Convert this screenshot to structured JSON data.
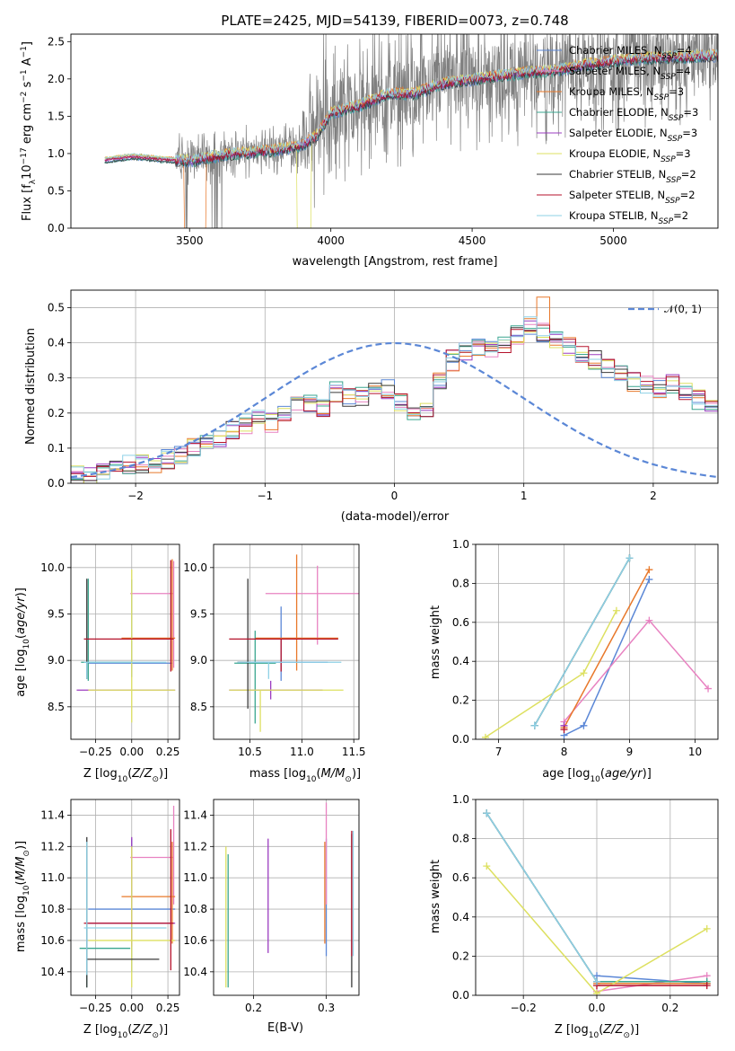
{
  "figure": {
    "title": "PLATE=2425, MJD=54139, FIBERID=0073, z=0.748"
  },
  "colors": {
    "Chabrier MILES": "#5b87d6",
    "Salpeter MILES": "#e882c1",
    "Kroupa MILES": "#e8782a",
    "Chabrier ELODIE": "#3aa68f",
    "Salpeter ELODIE": "#9b3cc0",
    "Kroupa ELODIE": "#dde060",
    "Chabrier STELIB": "#3a3a3a",
    "Salpeter STELIB": "#b5122b",
    "Kroupa STELIB": "#8ed1e6",
    "data": "#7f7f7f",
    "gauss": "#5b87d6",
    "grid": "#b0b0b0"
  },
  "models": [
    "Chabrier MILES",
    "Salpeter MILES",
    "Kroupa MILES",
    "Chabrier ELODIE",
    "Salpeter ELODIE",
    "Kroupa ELODIE",
    "Chabrier STELIB",
    "Salpeter STELIB",
    "Kroupa STELIB"
  ],
  "legend": {
    "spectrum": [
      {
        "pre": "Chabrier MILES, N",
        "sub": "SSP",
        "post": "=4"
      },
      {
        "pre": "Salpeter MILES, N",
        "sub": "SSP",
        "post": "=4"
      },
      {
        "pre": "Kroupa MILES, N",
        "sub": "SSP",
        "post": "=3"
      },
      {
        "pre": "Chabrier ELODIE, N",
        "sub": "SSP",
        "post": "=3"
      },
      {
        "pre": "Salpeter ELODIE, N",
        "sub": "SSP",
        "post": "=3"
      },
      {
        "pre": "Kroupa ELODIE, N",
        "sub": "SSP",
        "post": "=3"
      },
      {
        "pre": "Chabrier STELIB, N",
        "sub": "SSP",
        "post": "=2"
      },
      {
        "pre": "Salpeter STELIB, N",
        "sub": "SSP",
        "post": "=2"
      },
      {
        "pre": "Kroupa STELIB, N",
        "sub": "SSP",
        "post": "=2"
      }
    ],
    "residual": "𝒩(0, 1)"
  },
  "chart_data": [
    {
      "id": "spectrum",
      "type": "line",
      "xlabel": "wavelength [Angstrom, rest frame]",
      "ylabel": "Flux [f$_\\lambda$10$^{-17}$ erg cm$^{-2}$ s$^{-1}$ A$^{-1}$]",
      "ylabel_parts": {
        "a": "Flux [f",
        "b": "λ",
        "c": "10",
        "d": "−17",
        "e": " erg cm",
        "f": "−2",
        "g": " s",
        "h": "−1",
        "i": " A",
        "j": "−1",
        "k": "]"
      },
      "xlim": [
        3080,
        5370
      ],
      "ylim": [
        0,
        2.6
      ],
      "xticks": [
        3500,
        4000,
        4500,
        5000
      ],
      "yticks": [
        0.0,
        0.5,
        1.0,
        1.5,
        2.0,
        2.5
      ],
      "data_range": [
        3200,
        5370
      ],
      "continuum": [
        [
          3200,
          0.92
        ],
        [
          3300,
          0.97
        ],
        [
          3400,
          0.93
        ],
        [
          3500,
          0.91
        ],
        [
          3600,
          0.98
        ],
        [
          3700,
          1.02
        ],
        [
          3800,
          1.05
        ],
        [
          3900,
          1.12
        ],
        [
          3950,
          1.25
        ],
        [
          4000,
          1.55
        ],
        [
          4100,
          1.65
        ],
        [
          4200,
          1.8
        ],
        [
          4300,
          1.82
        ],
        [
          4400,
          1.95
        ],
        [
          4500,
          2.0
        ],
        [
          4600,
          2.05
        ],
        [
          4700,
          2.1
        ],
        [
          4800,
          2.12
        ],
        [
          4900,
          2.2
        ],
        [
          5000,
          2.25
        ],
        [
          5100,
          2.28
        ],
        [
          5200,
          2.3
        ],
        [
          5370,
          2.32
        ]
      ]
    },
    {
      "id": "residuals",
      "type": "histogram",
      "xlabel": "(data-model)/error",
      "ylabel": "Normed distribution",
      "xlim": [
        -2.5,
        2.5
      ],
      "ylim": [
        0,
        0.55
      ],
      "xticks": [
        -2,
        -1,
        0,
        1,
        2
      ],
      "yticks": [
        0.0,
        0.1,
        0.2,
        0.3,
        0.4,
        0.5
      ],
      "bin_width": 0.1,
      "bins_start": -2.5,
      "base_heights": [
        0.02,
        0.02,
        0.03,
        0.04,
        0.05,
        0.06,
        0.06,
        0.07,
        0.08,
        0.1,
        0.12,
        0.13,
        0.15,
        0.17,
        0.18,
        0.17,
        0.2,
        0.22,
        0.23,
        0.22,
        0.26,
        0.24,
        0.25,
        0.28,
        0.27,
        0.23,
        0.21,
        0.21,
        0.29,
        0.35,
        0.38,
        0.39,
        0.38,
        0.4,
        0.42,
        0.45,
        0.43,
        0.41,
        0.39,
        0.37,
        0.35,
        0.33,
        0.31,
        0.29,
        0.28,
        0.27,
        0.28,
        0.26,
        0.24,
        0.22,
        0.21,
        0.2,
        0.19,
        0.17,
        0.15,
        0.12,
        0.11,
        0.1,
        0.09,
        0.09,
        0.08,
        0.07,
        0.07,
        0.08,
        0.07,
        0.06,
        0.06,
        0.05,
        0.06,
        0.05,
        0.06,
        0.05,
        0.06,
        0.05,
        0.04,
        0.05,
        0.06,
        0.07,
        0.06,
        0.05
      ],
      "gaussian": {
        "mu": 0,
        "sigma": 1
      }
    },
    {
      "id": "age_vs_Z",
      "type": "errorbar",
      "xlabel": "Z [log$_{10}$(Z/Z$_\\odot$)]",
      "ylabel": "age  [log$_{10}$(age/yr)]",
      "xlim": [
        -0.42,
        0.33
      ],
      "ylim": [
        8.15,
        10.25
      ],
      "xticks": [
        -0.25,
        0.0,
        0.25
      ],
      "yticks": [
        8.5,
        9.0,
        9.5,
        10.0
      ],
      "points": [
        {
          "model": "Chabrier MILES",
          "x": 0.0,
          "xerr": [
            0.3,
            0.28
          ],
          "y": 8.97,
          "yerr": [
            0.15,
            0.9
          ]
        },
        {
          "model": "Salpeter MILES",
          "x": 0.29,
          "xerr": [
            0.3,
            0.0
          ],
          "y": 9.72,
          "yerr": [
            0.8,
            0.35
          ]
        },
        {
          "model": "Kroupa MILES",
          "x": 0.28,
          "xerr": [
            0.35,
            0.02
          ],
          "y": 9.24,
          "yerr": [
            0.35,
            0.85
          ]
        },
        {
          "model": "Chabrier ELODIE",
          "x": -0.3,
          "xerr": [
            0.05,
            0.3
          ],
          "y": 8.98,
          "yerr": [
            0.2,
            0.9
          ]
        },
        {
          "model": "Salpeter ELODIE",
          "x": -0.28,
          "xerr": [
            0.1,
            0.58
          ],
          "y": 8.68,
          "yerr": [
            0.0,
            0.0
          ]
        },
        {
          "model": "Kroupa ELODIE",
          "x": 0.0,
          "xerr": [
            0.3,
            0.3
          ],
          "y": 8.68,
          "yerr": [
            0.35,
            1.3
          ]
        },
        {
          "model": "Chabrier STELIB",
          "x": -0.31,
          "xerr": [
            0.0,
            0.0
          ],
          "y": 9.0,
          "yerr": [
            0.2,
            0.88
          ]
        },
        {
          "model": "Salpeter STELIB",
          "x": 0.27,
          "xerr": [
            0.6,
            0.02
          ],
          "y": 9.23,
          "yerr": [
            0.35,
            0.85
          ]
        },
        {
          "model": "Kroupa STELIB",
          "x": -0.31,
          "xerr": [
            0.02,
            0.55
          ],
          "y": 8.98,
          "yerr": [
            0.18,
            0.0
          ]
        }
      ]
    },
    {
      "id": "age_vs_mass",
      "type": "errorbar",
      "xlabel": "mass [log$_{10}$(M/M$_\\odot$)]",
      "ylabel": "",
      "xlim": [
        10.15,
        11.55
      ],
      "ylim": [
        8.15,
        10.25
      ],
      "xticks": [
        10.5,
        11.0,
        11.5
      ],
      "yticks": [
        8.5,
        9.0,
        9.5,
        10.0
      ],
      "points": [
        {
          "model": "Chabrier MILES",
          "x": 10.8,
          "xerr": [
            0.4,
            0.45
          ],
          "y": 8.98,
          "yerr": [
            0.2,
            0.6
          ]
        },
        {
          "model": "Salpeter MILES",
          "x": 11.15,
          "xerr": [
            0.5,
            0.4
          ],
          "y": 9.72,
          "yerr": [
            0.55,
            0.3
          ]
        },
        {
          "model": "Kroupa MILES",
          "x": 10.95,
          "xerr": [
            0.4,
            0.4
          ],
          "y": 9.24,
          "yerr": [
            0.35,
            0.9
          ]
        },
        {
          "model": "Chabrier ELODIE",
          "x": 10.55,
          "xerr": [
            0.2,
            0.2
          ],
          "y": 8.97,
          "yerr": [
            0.65,
            0.35
          ]
        },
        {
          "model": "Salpeter ELODIE",
          "x": 10.7,
          "xerr": [
            0.4,
            0.5
          ],
          "y": 8.68,
          "yerr": [
            0.1,
            0.1
          ]
        },
        {
          "model": "Kroupa ELODIE",
          "x": 10.6,
          "xerr": [
            0.3,
            0.8
          ],
          "y": 8.68,
          "yerr": [
            0.45,
            0.0
          ]
        },
        {
          "model": "Chabrier STELIB",
          "x": 10.48,
          "xerr": [
            0.1,
            0.0
          ],
          "y": 8.98,
          "yerr": [
            0.5,
            0.9
          ]
        },
        {
          "model": "Salpeter STELIB",
          "x": 10.8,
          "xerr": [
            0.5,
            0.55
          ],
          "y": 9.23,
          "yerr": [
            0.35,
            0.0
          ]
        },
        {
          "model": "Kroupa STELIB",
          "x": 10.68,
          "xerr": [
            0.3,
            0.7
          ],
          "y": 8.98,
          "yerr": [
            0.18,
            0.0
          ]
        }
      ]
    },
    {
      "id": "weight_vs_age",
      "type": "line",
      "xlabel": "age  [log$_{10}$(age/yr)]",
      "ylabel": "mass weight",
      "xlim": [
        6.65,
        10.35
      ],
      "ylim": [
        0,
        1.0
      ],
      "xticks": [
        7,
        8,
        9,
        10
      ],
      "yticks": [
        0.0,
        0.2,
        0.4,
        0.6,
        0.8,
        1.0
      ],
      "series": [
        {
          "model": "Chabrier MILES",
          "x": [
            8.0,
            8.3,
            9.3
          ],
          "y": [
            0.02,
            0.07,
            0.82
          ]
        },
        {
          "model": "Salpeter MILES",
          "x": [
            8.0,
            9.3,
            10.2
          ],
          "y": [
            0.09,
            0.61,
            0.26
          ]
        },
        {
          "model": "Kroupa MILES",
          "x": [
            8.0,
            9.3
          ],
          "y": [
            0.06,
            0.87
          ]
        },
        {
          "model": "Chabrier ELODIE",
          "x": [
            7.55,
            9.0
          ],
          "y": [
            0.07,
            0.93
          ]
        },
        {
          "model": "Salpeter ELODIE",
          "x": [
            8.0
          ],
          "y": [
            0.07
          ]
        },
        {
          "model": "Kroupa ELODIE",
          "x": [
            6.8,
            8.3,
            8.8
          ],
          "y": [
            0.01,
            0.34,
            0.66
          ]
        },
        {
          "model": "Chabrier STELIB",
          "x": [
            7.55,
            9.0
          ],
          "y": [
            0.07,
            0.93
          ]
        },
        {
          "model": "Salpeter STELIB",
          "x": [
            8.0
          ],
          "y": [
            0.05
          ]
        },
        {
          "model": "Kroupa STELIB",
          "x": [
            7.55,
            9.0
          ],
          "y": [
            0.07,
            0.93
          ]
        }
      ]
    },
    {
      "id": "mass_vs_Z",
      "type": "errorbar",
      "xlabel": "Z [log$_{10}$(Z/Z$_\\odot$)]",
      "ylabel": "mass [log$_{10}$(M/M$_\\odot$)]",
      "xlim": [
        -0.42,
        0.33
      ],
      "ylim": [
        10.25,
        11.5
      ],
      "xticks": [
        -0.25,
        0.0,
        0.25
      ],
      "yticks": [
        10.4,
        10.6,
        10.8,
        11.0,
        11.2,
        11.4
      ],
      "points": [
        {
          "model": "Chabrier MILES",
          "x": 0.0,
          "xerr": [
            0.3,
            0.3
          ],
          "y": 10.8,
          "yerr": [
            0.4,
            0.45
          ]
        },
        {
          "model": "Salpeter MILES",
          "x": 0.29,
          "xerr": [
            0.3,
            0.0
          ],
          "y": 11.13,
          "yerr": [
            0.3,
            0.33
          ]
        },
        {
          "model": "Kroupa MILES",
          "x": 0.28,
          "xerr": [
            0.35,
            0.02
          ],
          "y": 10.88,
          "yerr": [
            0.3,
            0.35
          ]
        },
        {
          "model": "Chabrier ELODIE",
          "x": -0.31,
          "xerr": [
            0.05,
            0.3
          ],
          "y": 10.55,
          "yerr": [
            0.25,
            0.65
          ]
        },
        {
          "model": "Salpeter ELODIE",
          "x": 0.0,
          "xerr": [
            0.3,
            0.3
          ],
          "y": 10.71,
          "yerr": [
            0.15,
            0.55
          ]
        },
        {
          "model": "Kroupa ELODIE",
          "x": 0.0,
          "xerr": [
            0.3,
            0.3
          ],
          "y": 10.6,
          "yerr": [
            0.3,
            0.6
          ]
        },
        {
          "model": "Chabrier STELIB",
          "x": -0.31,
          "xerr": [
            0.0,
            0.5
          ],
          "y": 10.48,
          "yerr": [
            0.18,
            0.78
          ]
        },
        {
          "model": "Salpeter STELIB",
          "x": 0.27,
          "xerr": [
            0.6,
            0.02
          ],
          "y": 10.71,
          "yerr": [
            0.3,
            0.6
          ]
        },
        {
          "model": "Kroupa STELIB",
          "x": -0.31,
          "xerr": [
            0.02,
            0.55
          ],
          "y": 10.68,
          "yerr": [
            0.3,
            0.55
          ]
        }
      ]
    },
    {
      "id": "mass_vs_EBV",
      "type": "errorbar",
      "xlabel": "E(B-V)",
      "ylabel": "",
      "xlim": [
        0.145,
        0.345
      ],
      "ylim": [
        10.25,
        11.5
      ],
      "xticks": [
        0.2,
        0.3
      ],
      "yticks": [
        10.4,
        10.6,
        10.8,
        11.0,
        11.2,
        11.4
      ],
      "points": [
        {
          "model": "Chabrier MILES",
          "x": 0.3,
          "xerr": [
            0,
            0
          ],
          "y": 10.8,
          "yerr": [
            0.3,
            0.45
          ]
        },
        {
          "model": "Salpeter MILES",
          "x": 0.3,
          "xerr": [
            0,
            0
          ],
          "y": 11.13,
          "yerr": [
            0.3,
            0.35
          ]
        },
        {
          "model": "Kroupa MILES",
          "x": 0.298,
          "xerr": [
            0,
            0
          ],
          "y": 10.88,
          "yerr": [
            0.3,
            0.35
          ]
        },
        {
          "model": "Chabrier ELODIE",
          "x": 0.165,
          "xerr": [
            0,
            0
          ],
          "y": 10.6,
          "yerr": [
            0.3,
            0.55
          ]
        },
        {
          "model": "Salpeter ELODIE",
          "x": 0.22,
          "xerr": [
            0,
            0
          ],
          "y": 10.88,
          "yerr": [
            0.36,
            0.37
          ]
        },
        {
          "model": "Kroupa ELODIE",
          "x": 0.162,
          "xerr": [
            0,
            0
          ],
          "y": 10.7,
          "yerr": [
            0.4,
            0.5
          ]
        },
        {
          "model": "Chabrier STELIB",
          "x": 0.335,
          "xerr": [
            0,
            0
          ],
          "y": 10.48,
          "yerr": [
            0.18,
            0.8
          ]
        },
        {
          "model": "Salpeter STELIB",
          "x": 0.335,
          "xerr": [
            0,
            0
          ],
          "y": 10.9,
          "yerr": [
            0.4,
            0.4
          ]
        },
        {
          "model": "Kroupa STELIB",
          "x": 0.337,
          "xerr": [
            0,
            0
          ],
          "y": 10.9,
          "yerr": [
            0.4,
            0.4
          ]
        }
      ]
    },
    {
      "id": "weight_vs_Z",
      "type": "line",
      "xlabel": "Z [log$_{10}$(Z/Z$_\\odot$)]",
      "ylabel": "mass weight",
      "xlim": [
        -0.33,
        0.33
      ],
      "ylim": [
        0,
        1.0
      ],
      "xticks": [
        -0.2,
        0.0,
        0.2
      ],
      "yticks": [
        0.0,
        0.2,
        0.4,
        0.6,
        0.8,
        1.0
      ],
      "series": [
        {
          "model": "Chabrier MILES",
          "x": [
            0.0,
            0.3
          ],
          "y": [
            0.1,
            0.06
          ]
        },
        {
          "model": "Salpeter MILES",
          "x": [
            0.0,
            0.3
          ],
          "y": [
            0.02,
            0.1
          ]
        },
        {
          "model": "Kroupa MILES",
          "x": [
            0.0,
            0.3
          ],
          "y": [
            0.06,
            0.06
          ]
        },
        {
          "model": "Chabrier ELODIE",
          "x": [
            -0.3,
            0.0,
            0.3
          ],
          "y": [
            0.93,
            0.07,
            0.07
          ]
        },
        {
          "model": "Salpeter ELODIE",
          "x": [
            0.0
          ],
          "y": [
            0.07
          ]
        },
        {
          "model": "Kroupa ELODIE",
          "x": [
            -0.3,
            0.0,
            0.3
          ],
          "y": [
            0.66,
            0.01,
            0.34
          ]
        },
        {
          "model": "Chabrier STELIB",
          "x": [
            -0.3,
            0.0
          ],
          "y": [
            0.93,
            0.07
          ]
        },
        {
          "model": "Salpeter STELIB",
          "x": [
            0.0,
            0.3
          ],
          "y": [
            0.05,
            0.05
          ]
        },
        {
          "model": "Kroupa STELIB",
          "x": [
            -0.3,
            0.0
          ],
          "y": [
            0.93,
            0.07
          ]
        }
      ]
    }
  ]
}
